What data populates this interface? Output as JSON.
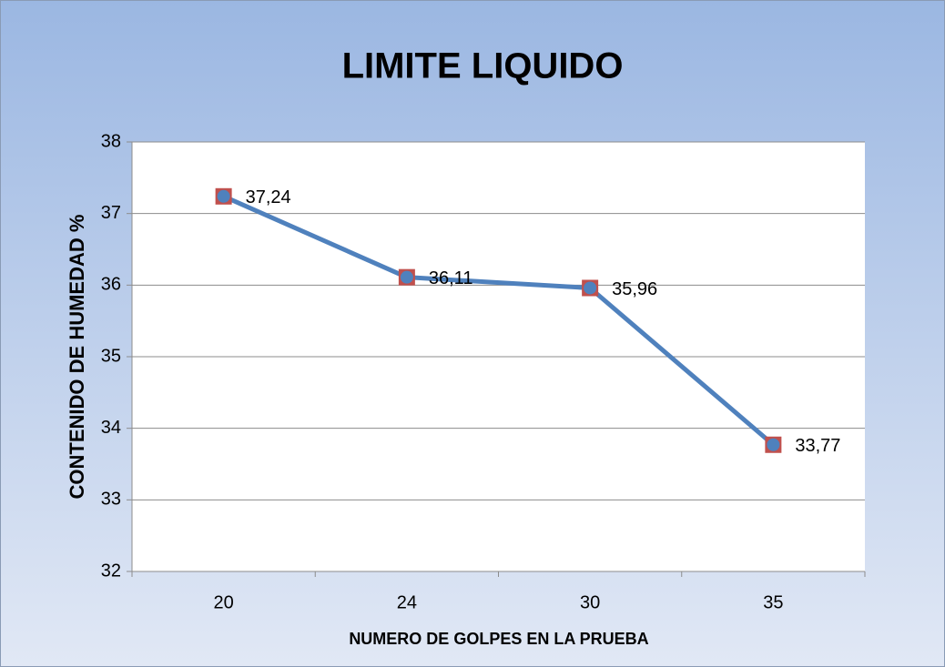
{
  "chart_data": {
    "type": "line",
    "title": "LIMITE LIQUIDO",
    "x_label": "NUMERO DE GOLPES EN LA PRUEBA",
    "y_label": "CONTENIDO DE HUMEDAD %",
    "categories": [
      "20",
      "24",
      "30",
      "35"
    ],
    "series": [
      {
        "color": "#4f81bd",
        "marker_color": "#c0504d",
        "values": [
          37.24,
          36.11,
          35.96,
          33.77
        ],
        "value_labels": [
          "37,24",
          "36,11",
          "35,96",
          "33,77"
        ]
      }
    ],
    "ylim": [
      32,
      38
    ],
    "yticks": [
      32,
      33,
      34,
      35,
      36,
      37,
      38
    ],
    "grid": true
  }
}
